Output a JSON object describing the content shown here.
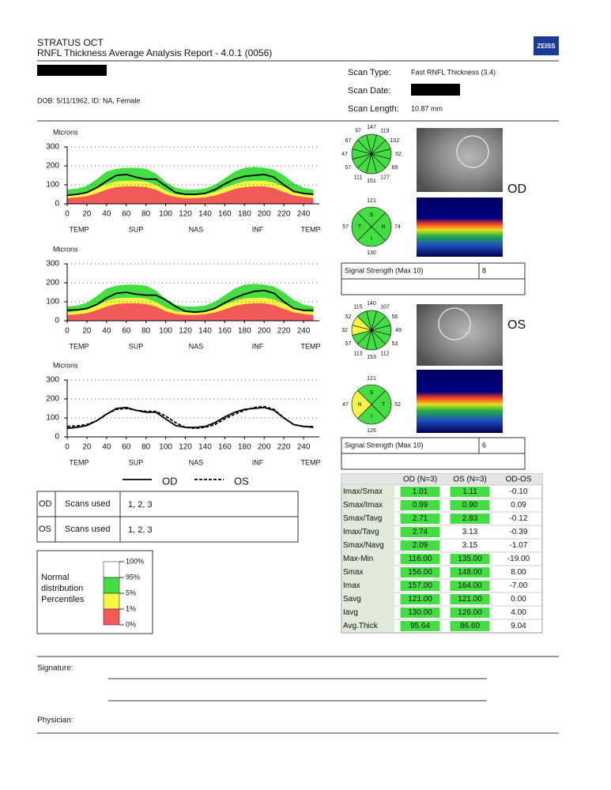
{
  "header": {
    "line1": "STRATUS OCT",
    "line2": "RNFL Thickness Average Analysis Report - 4.0.1 (0056)",
    "logo": "ZEISS"
  },
  "patient": {
    "dob": "DOB: 5/11/1962, ID: NA, Female"
  },
  "scan": {
    "type_label": "Scan Type:",
    "type": "Fast RNFL Thickness (3.4)",
    "date_label": "Scan Date:",
    "length_label": "Scan Length:",
    "length": "10.87 mm"
  },
  "charts": [
    {
      "type": "line",
      "ylabel": "Microns",
      "regions": [
        "TEMP",
        "SUP",
        "NAS",
        "INF",
        "TEMP"
      ],
      "xlim": [
        0,
        256
      ],
      "ylim": [
        0,
        300
      ],
      "xticks": [
        0,
        20,
        40,
        60,
        80,
        100,
        120,
        140,
        160,
        180,
        200,
        220,
        240
      ],
      "yticks": [
        0,
        100,
        200,
        300
      ],
      "x": [
        0,
        10,
        20,
        30,
        40,
        50,
        60,
        70,
        80,
        90,
        100,
        110,
        120,
        130,
        140,
        150,
        160,
        170,
        180,
        190,
        200,
        210,
        220,
        230,
        240,
        250
      ],
      "bands": [
        {
          "color": "#44dd44",
          "values": [
            75,
            80,
            95,
            130,
            170,
            185,
            190,
            190,
            185,
            160,
            115,
            85,
            75,
            75,
            80,
            100,
            135,
            170,
            190,
            195,
            190,
            180,
            150,
            110,
            85,
            75
          ]
        },
        {
          "color": "#f5f542",
          "values": [
            45,
            50,
            58,
            80,
            105,
            118,
            122,
            122,
            118,
            100,
            70,
            50,
            45,
            45,
            50,
            62,
            85,
            105,
            118,
            122,
            122,
            112,
            90,
            65,
            50,
            45
          ]
        },
        {
          "color": "#f25a5a",
          "values": [
            30,
            34,
            40,
            55,
            75,
            88,
            92,
            92,
            88,
            75,
            50,
            36,
            30,
            30,
            34,
            44,
            60,
            78,
            88,
            92,
            92,
            82,
            62,
            44,
            36,
            30
          ]
        }
      ],
      "series": [
        {
          "color": "#000000",
          "dash": false,
          "values": [
            45,
            50,
            60,
            85,
            120,
            150,
            155,
            140,
            130,
            130,
            95,
            60,
            50,
            50,
            55,
            75,
            105,
            130,
            145,
            150,
            155,
            140,
            100,
            65,
            55,
            50
          ]
        }
      ]
    },
    {
      "type": "line",
      "ylabel": "Microns",
      "regions": [
        "TEMP",
        "SUP",
        "NAS",
        "INF",
        "TEMP"
      ],
      "xlim": [
        0,
        256
      ],
      "ylim": [
        0,
        300
      ],
      "xticks": [
        0,
        20,
        40,
        60,
        80,
        100,
        120,
        140,
        160,
        180,
        200,
        220,
        240
      ],
      "yticks": [
        0,
        100,
        200,
        300
      ],
      "x": [
        0,
        10,
        20,
        30,
        40,
        50,
        60,
        70,
        80,
        90,
        100,
        110,
        120,
        130,
        140,
        150,
        160,
        170,
        180,
        190,
        200,
        210,
        220,
        230,
        240,
        250
      ],
      "bands": [
        {
          "color": "#44dd44",
          "values": [
            75,
            80,
            95,
            130,
            170,
            185,
            190,
            190,
            185,
            160,
            115,
            85,
            75,
            75,
            80,
            100,
            135,
            170,
            190,
            195,
            190,
            180,
            150,
            110,
            85,
            75
          ]
        },
        {
          "color": "#f5f542",
          "values": [
            45,
            50,
            58,
            80,
            105,
            118,
            122,
            122,
            118,
            100,
            70,
            50,
            45,
            45,
            50,
            62,
            85,
            105,
            118,
            122,
            122,
            112,
            90,
            65,
            50,
            45
          ]
        },
        {
          "color": "#f25a5a",
          "values": [
            30,
            34,
            40,
            55,
            75,
            88,
            92,
            92,
            88,
            75,
            50,
            36,
            30,
            30,
            34,
            44,
            60,
            78,
            88,
            92,
            92,
            82,
            62,
            44,
            36,
            30
          ]
        }
      ],
      "series": [
        {
          "color": "#000000",
          "dash": false,
          "values": [
            55,
            58,
            65,
            85,
            120,
            145,
            150,
            140,
            135,
            135,
            110,
            75,
            50,
            45,
            50,
            65,
            95,
            120,
            140,
            155,
            160,
            145,
            100,
            65,
            55,
            55
          ]
        }
      ]
    },
    {
      "type": "line",
      "ylabel": "Microns",
      "regions": [
        "TEMP",
        "SUP",
        "NAS",
        "INF",
        "TEMP"
      ],
      "xlim": [
        0,
        256
      ],
      "ylim": [
        0,
        300
      ],
      "xticks": [
        0,
        20,
        40,
        60,
        80,
        100,
        120,
        140,
        160,
        180,
        200,
        220,
        240
      ],
      "yticks": [
        0,
        100,
        200,
        300
      ],
      "x": [
        0,
        10,
        20,
        30,
        40,
        50,
        60,
        70,
        80,
        90,
        100,
        110,
        120,
        130,
        140,
        150,
        160,
        170,
        180,
        190,
        200,
        210,
        220,
        230,
        240,
        250
      ],
      "bands": [],
      "series": [
        {
          "name": "OD",
          "color": "#000000",
          "dash": false,
          "values": [
            45,
            50,
            60,
            85,
            120,
            150,
            155,
            140,
            130,
            130,
            95,
            60,
            50,
            50,
            55,
            75,
            105,
            130,
            145,
            150,
            155,
            140,
            100,
            65,
            55,
            50
          ]
        },
        {
          "name": "OS",
          "color": "#000000",
          "dash": true,
          "values": [
            55,
            58,
            65,
            85,
            120,
            145,
            150,
            140,
            135,
            135,
            110,
            75,
            50,
            45,
            50,
            65,
            95,
            120,
            140,
            155,
            160,
            145,
            100,
            65,
            55,
            55
          ]
        }
      ]
    }
  ],
  "eyes": [
    {
      "label": "OD",
      "clock": [
        147,
        119,
        102,
        52,
        69,
        127,
        151,
        111,
        57,
        47,
        67,
        97
      ],
      "clock_colors": [
        "#44dd44",
        "#44dd44",
        "#44dd44",
        "#44dd44",
        "#44dd44",
        "#44dd44",
        "#44dd44",
        "#44dd44",
        "#44dd44",
        "#44dd44",
        "#44dd44",
        "#44dd44"
      ],
      "quadrants": [
        {
          "letter": "S",
          "value": 121,
          "color": "#44dd44"
        },
        {
          "letter": "N",
          "value": 74,
          "color": "#44dd44"
        },
        {
          "letter": "I",
          "value": 130,
          "color": "#44dd44"
        },
        {
          "letter": "T",
          "value": 57,
          "color": "#44dd44"
        }
      ],
      "signal_label": "Signal Strength (Max 10)",
      "signal": "8"
    },
    {
      "label": "OS",
      "clock": [
        140,
        107,
        56,
        49,
        53,
        112,
        153,
        113,
        57,
        32,
        52,
        115
      ],
      "clock_colors": [
        "#44dd44",
        "#44dd44",
        "#44dd44",
        "#44dd44",
        "#44dd44",
        "#44dd44",
        "#44dd44",
        "#44dd44",
        "#44dd44",
        "#f5f542",
        "#f5f542",
        "#44dd44"
      ],
      "quadrants": [
        {
          "letter": "S",
          "value": 121,
          "color": "#44dd44"
        },
        {
          "letter": "T",
          "value": 52,
          "color": "#44dd44"
        },
        {
          "letter": "I",
          "value": 126,
          "color": "#44dd44"
        },
        {
          "letter": "N",
          "value": 47,
          "color": "#f5f542"
        }
      ],
      "signal_label": "Signal Strength (Max 10)",
      "signal": "6"
    }
  ],
  "scans_used": [
    {
      "eye": "OD",
      "label": "Scans used",
      "value": "1, 2, 3"
    },
    {
      "eye": "OS",
      "label": "Scans used",
      "value": "1, 2, 3"
    }
  ],
  "percentiles": {
    "title": [
      "Normal",
      "distribution",
      "Percentiles"
    ],
    "levels": [
      "100%",
      "95%",
      "5%",
      "1%",
      "0%"
    ],
    "colors": [
      "#ffffff",
      "#44dd44",
      "#f5f542",
      "#f25a5a"
    ]
  },
  "table": {
    "header": [
      "OD (N=3)",
      "OS (N=3)",
      "OD-OS"
    ],
    "rows": [
      {
        "label": "Imax/Smax",
        "od": "1.01",
        "os": "1.11",
        "diff": "-0.10",
        "od_green": true,
        "os_green": true
      },
      {
        "label": "Smax/Imax",
        "od": "0.99",
        "os": "0.90",
        "diff": "0.09",
        "od_green": true,
        "os_green": true
      },
      {
        "label": "Smax/Tavg",
        "od": "2.71",
        "os": "2.83",
        "diff": "-0.12",
        "od_green": true,
        "os_green": true
      },
      {
        "label": "Imax/Tavg",
        "od": "2.74",
        "os": "3.13",
        "diff": "-0.39",
        "od_green": true,
        "os_green": false
      },
      {
        "label": "Smax/Navg",
        "od": "2.09",
        "os": "3.15",
        "diff": "-1.07",
        "od_green": true,
        "os_green": false
      },
      {
        "label": "Max-Min",
        "od": "116.00",
        "os": "135.00",
        "diff": "-19.00",
        "od_green": true,
        "os_green": true
      },
      {
        "label": "Smax",
        "od": "156.00",
        "os": "148.00",
        "diff": "8.00",
        "od_green": true,
        "os_green": true
      },
      {
        "label": "Imax",
        "od": "157.00",
        "os": "164.00",
        "diff": "-7.00",
        "od_green": true,
        "os_green": true
      },
      {
        "label": "Savg",
        "od": "121.00",
        "os": "121.00",
        "diff": "0.00",
        "od_green": true,
        "os_green": true
      },
      {
        "label": "Iavg",
        "od": "130.00",
        "os": "126.00",
        "diff": "4.00",
        "od_green": true,
        "os_green": true
      },
      {
        "label": "Avg.Thick",
        "od": "95.64",
        "os": "86.60",
        "diff": "9.04",
        "od_green": true,
        "os_green": true
      }
    ]
  },
  "footer": {
    "signature": "Signature:",
    "physician": "Physician:"
  }
}
